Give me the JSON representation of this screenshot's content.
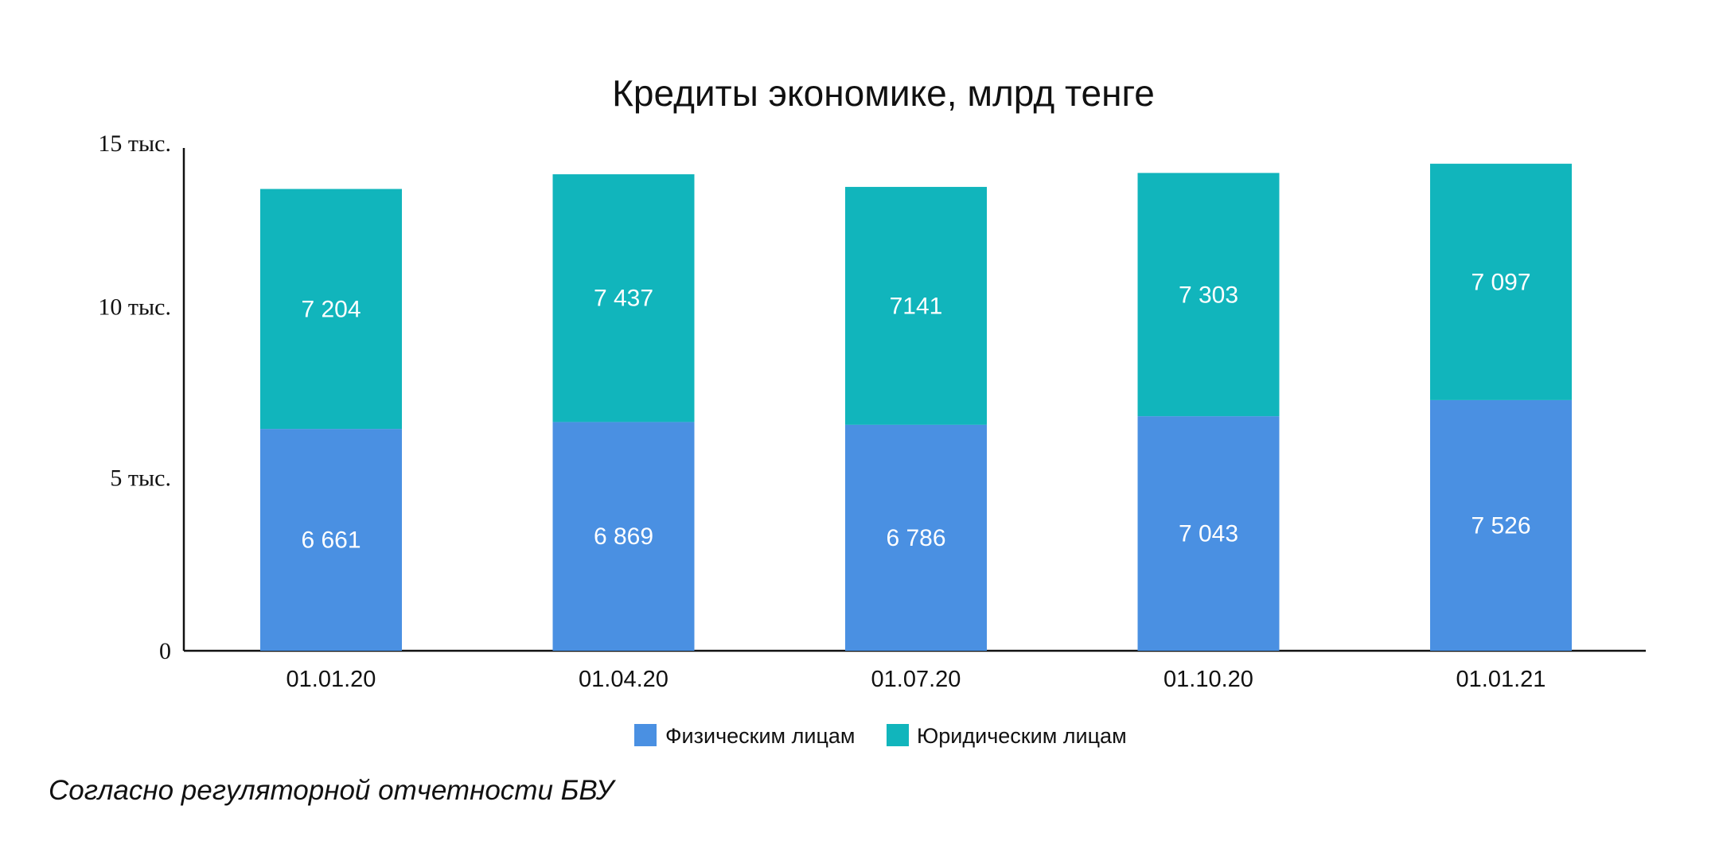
{
  "chart_data": {
    "type": "bar",
    "stacked": true,
    "title": "Кредиты экономике, млрд тенге",
    "xlabel": "",
    "ylabel": "",
    "categories": [
      "01.01.20",
      "01.04.20",
      "01.07.20",
      "01.10.20",
      "01.01.21"
    ],
    "series": [
      {
        "name": "Физическим лицам",
        "color": "#4a90e2",
        "values": [
          6661,
          6869,
          6786,
          7043,
          7526
        ],
        "labels": [
          "6 661",
          "6 869",
          "6 786",
          "7 043",
          "7 526"
        ]
      },
      {
        "name": "Юридическим лицам",
        "color": "#11b5bc",
        "values": [
          7204,
          7437,
          7141,
          7303,
          7097
        ],
        "labels": [
          "7 204",
          "7 437",
          "7141",
          "7 303",
          "7 097"
        ]
      }
    ],
    "ylim": [
      0,
      15000
    ],
    "yticks": [
      0,
      5000,
      10000,
      15000
    ],
    "ytick_labels": [
      "0",
      "5 тыс.",
      "10 тыс.",
      "15 тыс."
    ],
    "grid": false,
    "legend_position": "bottom-center"
  },
  "source_note": "Согласно регуляторной отчетности БВУ"
}
